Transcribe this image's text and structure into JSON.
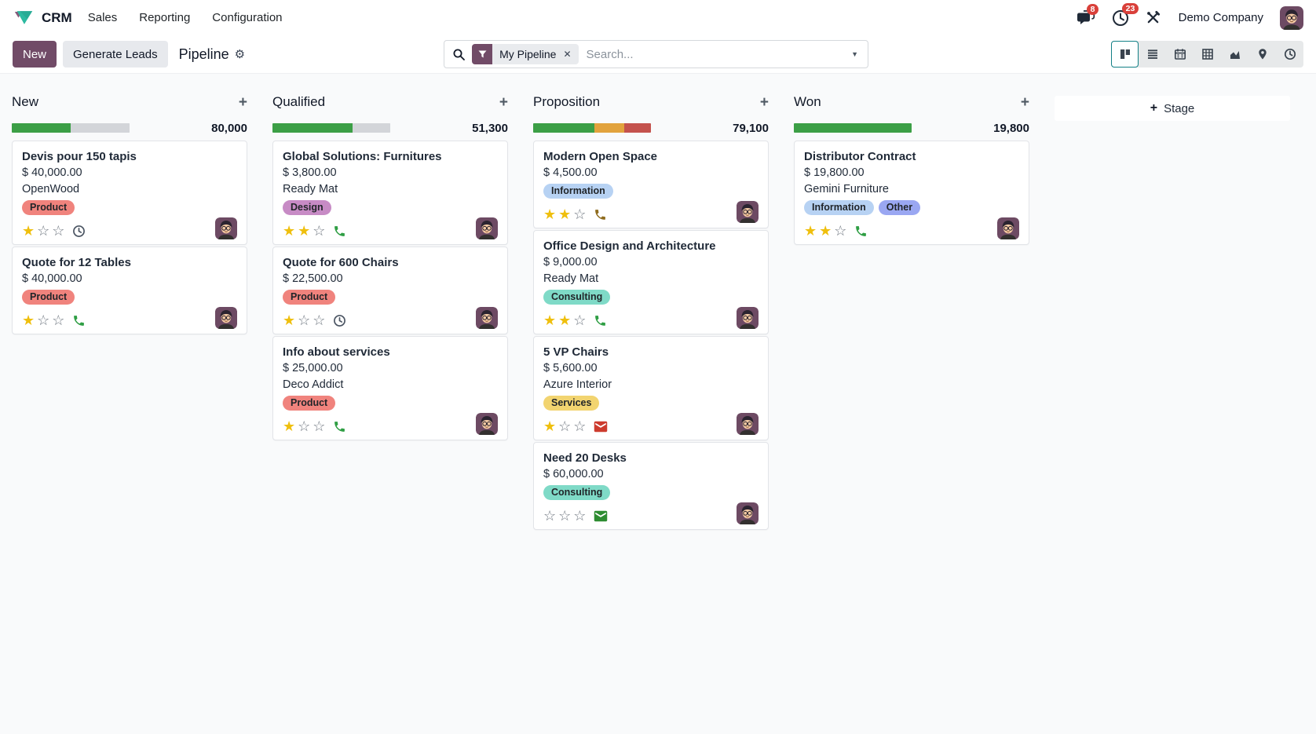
{
  "app": {
    "name": "CRM",
    "menus": [
      "Sales",
      "Reporting",
      "Configuration"
    ]
  },
  "systray": {
    "messages_badge": "8",
    "activities_badge": "23",
    "company": "Demo Company"
  },
  "control_panel": {
    "new_button": "New",
    "generate_leads_button": "Generate Leads",
    "breadcrumb_title": "Pipeline",
    "search": {
      "facet_label": "My Pipeline",
      "placeholder": "Search..."
    },
    "view_switcher": [
      {
        "name": "kanban",
        "active": true
      },
      {
        "name": "list",
        "active": false
      },
      {
        "name": "calendar",
        "active": false
      },
      {
        "name": "pivot",
        "active": false
      },
      {
        "name": "graph",
        "active": false
      },
      {
        "name": "map",
        "active": false
      },
      {
        "name": "activity",
        "active": false
      }
    ]
  },
  "board": {
    "add_stage_label": "Stage",
    "columns": [
      {
        "name": "New",
        "amount": "80,000",
        "progress": [
          {
            "color": "#3c9f46",
            "pct": 50
          },
          {
            "color": "#d3d5d9",
            "pct": 50
          }
        ],
        "cards": [
          {
            "title": "Devis pour 150 tapis",
            "amount": "$ 40,000.00",
            "company": "OpenWood",
            "tags": [
              {
                "label": "Product",
                "bg": "#f0837d"
              }
            ],
            "stars": 1,
            "activity": {
              "icon": "clock-icon",
              "color": "#4b5563"
            }
          },
          {
            "title": "Quote for 12 Tables",
            "amount": "$ 40,000.00",
            "company": "",
            "tags": [
              {
                "label": "Product",
                "bg": "#f0837d"
              }
            ],
            "stars": 1,
            "activity": {
              "icon": "phone-icon",
              "color": "#2f9e44"
            }
          }
        ]
      },
      {
        "name": "Qualified",
        "amount": "51,300",
        "progress": [
          {
            "color": "#3c9f46",
            "pct": 68
          },
          {
            "color": "#d3d5d9",
            "pct": 32
          }
        ],
        "cards": [
          {
            "title": "Global Solutions: Furnitures",
            "amount": "$ 3,800.00",
            "company": "Ready Mat",
            "tags": [
              {
                "label": "Design",
                "bg": "#c78bc5"
              }
            ],
            "stars": 2,
            "activity": {
              "icon": "phone-icon",
              "color": "#2f9e44"
            }
          },
          {
            "title": "Quote for 600 Chairs",
            "amount": "$ 22,500.00",
            "company": "",
            "tags": [
              {
                "label": "Product",
                "bg": "#f0837d"
              }
            ],
            "stars": 1,
            "activity": {
              "icon": "clock-icon",
              "color": "#4b5563"
            }
          },
          {
            "title": "Info about services",
            "amount": "$ 25,000.00",
            "company": "Deco Addict",
            "tags": [
              {
                "label": "Product",
                "bg": "#f0837d"
              }
            ],
            "stars": 1,
            "activity": {
              "icon": "phone-icon",
              "color": "#2f9e44"
            }
          }
        ]
      },
      {
        "name": "Proposition",
        "amount": "79,100",
        "progress": [
          {
            "color": "#3c9f46",
            "pct": 52
          },
          {
            "color": "#e2a33d",
            "pct": 25
          },
          {
            "color": "#c4524d",
            "pct": 23
          }
        ],
        "cards": [
          {
            "title": "Modern Open Space",
            "amount": "$ 4,500.00",
            "company": "",
            "tags": [
              {
                "label": "Information",
                "bg": "#b7d2f3"
              }
            ],
            "stars": 2,
            "activity": {
              "icon": "phone-icon",
              "color": "#8f6c1e"
            }
          },
          {
            "title": "Office Design and Architecture",
            "amount": "$ 9,000.00",
            "company": "Ready Mat",
            "tags": [
              {
                "label": "Consulting",
                "bg": "#7fdac7"
              }
            ],
            "stars": 2,
            "activity": {
              "icon": "phone-icon",
              "color": "#2f9e44"
            }
          },
          {
            "title": "5 VP Chairs",
            "amount": "$ 5,600.00",
            "company": "Azure Interior",
            "tags": [
              {
                "label": "Services",
                "bg": "#f2d470"
              }
            ],
            "stars": 1,
            "activity": {
              "icon": "mail-icon",
              "color": "#cd3b2e"
            }
          },
          {
            "title": "Need 20 Desks",
            "amount": "$ 60,000.00",
            "company": "",
            "tags": [
              {
                "label": "Consulting",
                "bg": "#7fdac7"
              }
            ],
            "stars": 0,
            "activity": {
              "icon": "mail-icon",
              "color": "#2d8c31"
            }
          }
        ]
      },
      {
        "name": "Won",
        "amount": "19,800",
        "progress": [
          {
            "color": "#3c9f46",
            "pct": 100
          }
        ],
        "cards": [
          {
            "title": "Distributor Contract",
            "amount": "$ 19,800.00",
            "company": "Gemini Furniture",
            "tags": [
              {
                "label": "Information",
                "bg": "#b7d2f3"
              },
              {
                "label": "Other",
                "bg": "#9aa7f2"
              }
            ],
            "stars": 2,
            "activity": {
              "icon": "phone-icon",
              "color": "#2f9e44"
            }
          }
        ]
      }
    ]
  },
  "glyphs": {
    "plus": "+",
    "close": "✕",
    "caret": "▼",
    "gear": "⚙",
    "star_filled": "★",
    "star_empty": "☆"
  },
  "colors": {
    "primary": "#714B67",
    "accent_teal": "#118086",
    "badge_red": "#d9403a",
    "progress_green": "#3c9f46",
    "progress_orange": "#e2a33d",
    "progress_red": "#c4524d",
    "progress_muted": "#d3d5d9"
  }
}
